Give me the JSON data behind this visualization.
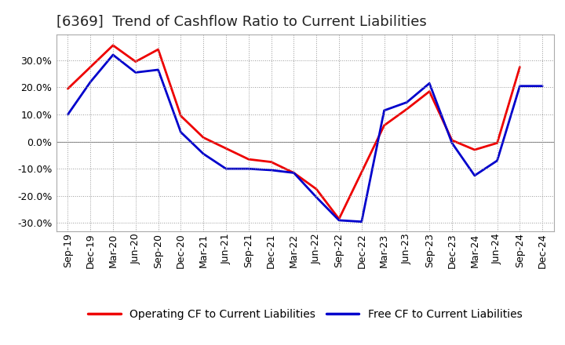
{
  "title": "[6369]  Trend of Cashflow Ratio to Current Liabilities",
  "x_labels": [
    "Sep-19",
    "Dec-19",
    "Mar-20",
    "Jun-20",
    "Sep-20",
    "Dec-20",
    "Mar-21",
    "Jun-21",
    "Sep-21",
    "Dec-21",
    "Mar-22",
    "Jun-22",
    "Sep-22",
    "Dec-22",
    "Mar-23",
    "Jun-23",
    "Sep-23",
    "Dec-23",
    "Mar-24",
    "Jun-24",
    "Sep-24",
    "Dec-24"
  ],
  "operating_cf": [
    0.195,
    0.275,
    0.355,
    0.295,
    0.34,
    0.095,
    0.015,
    -0.025,
    -0.065,
    -0.075,
    -0.115,
    -0.175,
    -0.285,
    null,
    0.06,
    0.12,
    0.185,
    0.005,
    -0.03,
    -0.005,
    0.275,
    null
  ],
  "free_cf": [
    0.1,
    0.22,
    0.32,
    0.255,
    0.265,
    0.035,
    -0.045,
    -0.1,
    -0.1,
    -0.105,
    -0.115,
    -0.205,
    -0.29,
    -0.295,
    0.115,
    0.145,
    0.215,
    -0.005,
    -0.125,
    -0.07,
    0.205,
    0.205
  ],
  "ylim": [
    -0.33,
    0.395
  ],
  "yticks": [
    -0.3,
    -0.2,
    -0.1,
    0.0,
    0.1,
    0.2,
    0.3
  ],
  "operating_color": "#EE0000",
  "free_color": "#0000CC",
  "background_color": "#FFFFFF",
  "grid_color": "#999999",
  "legend_op": "Operating CF to Current Liabilities",
  "legend_free": "Free CF to Current Liabilities",
  "title_fontsize": 13,
  "tick_fontsize": 9,
  "legend_fontsize": 10
}
